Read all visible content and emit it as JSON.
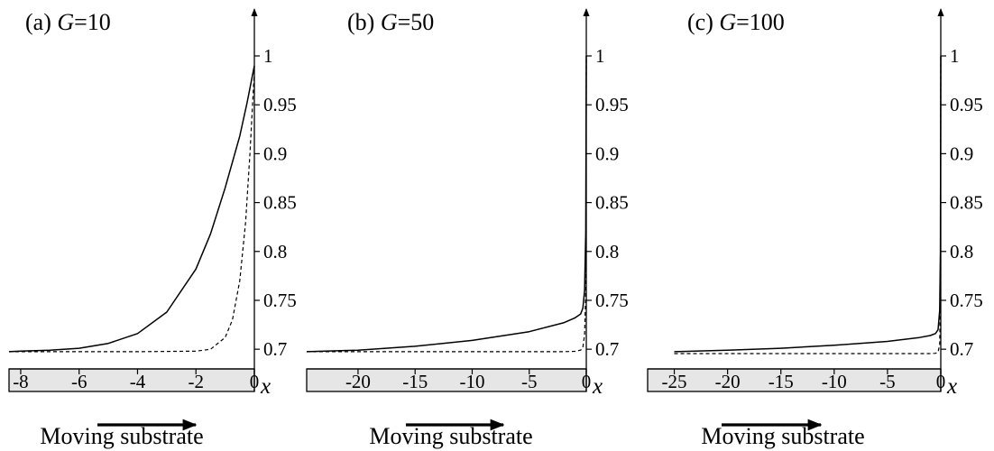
{
  "chart_data": [
    {
      "type": "line",
      "title": "(a) G=10",
      "panel": "(a)",
      "param_name": "G",
      "param_value": "=10",
      "xlabel": "x",
      "ylabel": "",
      "xlim": [
        -8.4,
        0
      ],
      "ylim": [
        0.69,
        1.0
      ],
      "x_ticks": [
        -8,
        -6,
        -4,
        -2,
        0
      ],
      "x_tick_labels": [
        "-8",
        "-6",
        "-4",
        "-2",
        "0"
      ],
      "y_ticks": [
        0.7,
        0.75,
        0.8,
        0.85,
        0.9,
        0.95,
        1
      ],
      "y_tick_labels": [
        "0.7",
        "0.75",
        "0.8",
        "0.85",
        "0.9",
        "0.95",
        "1"
      ],
      "grid": false,
      "caption": "Moving substrate",
      "series": [
        {
          "style": "solid",
          "x": [
            -8.4,
            -8,
            -7,
            -6,
            -5,
            -4,
            -3,
            -2,
            -1.5,
            -1,
            -0.5,
            -0.25,
            0
          ],
          "y": [
            0.6975,
            0.698,
            0.699,
            0.701,
            0.706,
            0.716,
            0.738,
            0.782,
            0.818,
            0.865,
            0.918,
            0.952,
            0.99
          ]
        },
        {
          "style": "dashed",
          "x": [
            -8.4,
            -4,
            -2,
            -1.5,
            -1,
            -0.75,
            -0.5,
            -0.3,
            -0.15,
            0
          ],
          "y": [
            0.6975,
            0.6975,
            0.698,
            0.7,
            0.712,
            0.73,
            0.77,
            0.83,
            0.9,
            0.985
          ]
        }
      ]
    },
    {
      "type": "line",
      "title": "(b) G=50",
      "panel": "(b)",
      "param_name": "G",
      "param_value": "=50",
      "xlabel": "x",
      "ylabel": "",
      "xlim": [
        -24.5,
        0
      ],
      "ylim": [
        0.69,
        1.0
      ],
      "x_ticks": [
        -20,
        -15,
        -10,
        -5,
        0
      ],
      "x_tick_labels": [
        "-20",
        "-15",
        "-10",
        "-5",
        "0"
      ],
      "y_ticks": [
        0.7,
        0.75,
        0.8,
        0.85,
        0.9,
        0.95,
        1
      ],
      "y_tick_labels": [
        "0.7",
        "0.75",
        "0.8",
        "0.85",
        "0.9",
        "0.95",
        "1"
      ],
      "grid": false,
      "caption": "Moving substrate",
      "series": [
        {
          "style": "solid",
          "x": [
            -24.5,
            -20,
            -15,
            -10,
            -5,
            -2,
            -1,
            -0.5,
            -0.3,
            -0.15,
            -0.05,
            0
          ],
          "y": [
            0.6975,
            0.699,
            0.703,
            0.709,
            0.718,
            0.727,
            0.732,
            0.736,
            0.742,
            0.76,
            0.82,
            1.0
          ]
        },
        {
          "style": "dashed",
          "x": [
            -24.5,
            -2,
            -1,
            -0.5,
            -0.3,
            -0.15,
            -0.05,
            0
          ],
          "y": [
            0.6975,
            0.6975,
            0.6978,
            0.699,
            0.702,
            0.715,
            0.76,
            1.0
          ]
        }
      ]
    },
    {
      "type": "line",
      "title": "(c) G=100",
      "panel": "(c)",
      "param_name": "G",
      "param_value": "=100",
      "xlabel": "x",
      "ylabel": "",
      "xlim": [
        -27.5,
        0
      ],
      "ylim": [
        0.69,
        1.0
      ],
      "x_ticks": [
        -25,
        -20,
        -15,
        -10,
        -5,
        0
      ],
      "x_tick_labels": [
        "-25",
        "-20",
        "-15",
        "-10",
        "-5",
        "0"
      ],
      "y_ticks": [
        0.7,
        0.75,
        0.8,
        0.85,
        0.9,
        0.95,
        1
      ],
      "y_tick_labels": [
        "0.7",
        "0.75",
        "0.8",
        "0.85",
        "0.9",
        "0.95",
        "1"
      ],
      "grid": false,
      "caption": "Moving substrate",
      "series": [
        {
          "style": "solid",
          "x": [
            -25,
            -20,
            -15,
            -10,
            -5,
            -2,
            -1,
            -0.5,
            -0.25,
            -0.1,
            -0.03,
            0
          ],
          "y": [
            0.6975,
            0.699,
            0.701,
            0.704,
            0.708,
            0.712,
            0.714,
            0.716,
            0.72,
            0.74,
            0.8,
            1.0
          ]
        },
        {
          "style": "dashed",
          "x": [
            -25,
            -1,
            -0.5,
            -0.25,
            -0.1,
            -0.03,
            0
          ],
          "y": [
            0.6955,
            0.6955,
            0.6958,
            0.697,
            0.705,
            0.76,
            1.0
          ]
        }
      ]
    }
  ]
}
